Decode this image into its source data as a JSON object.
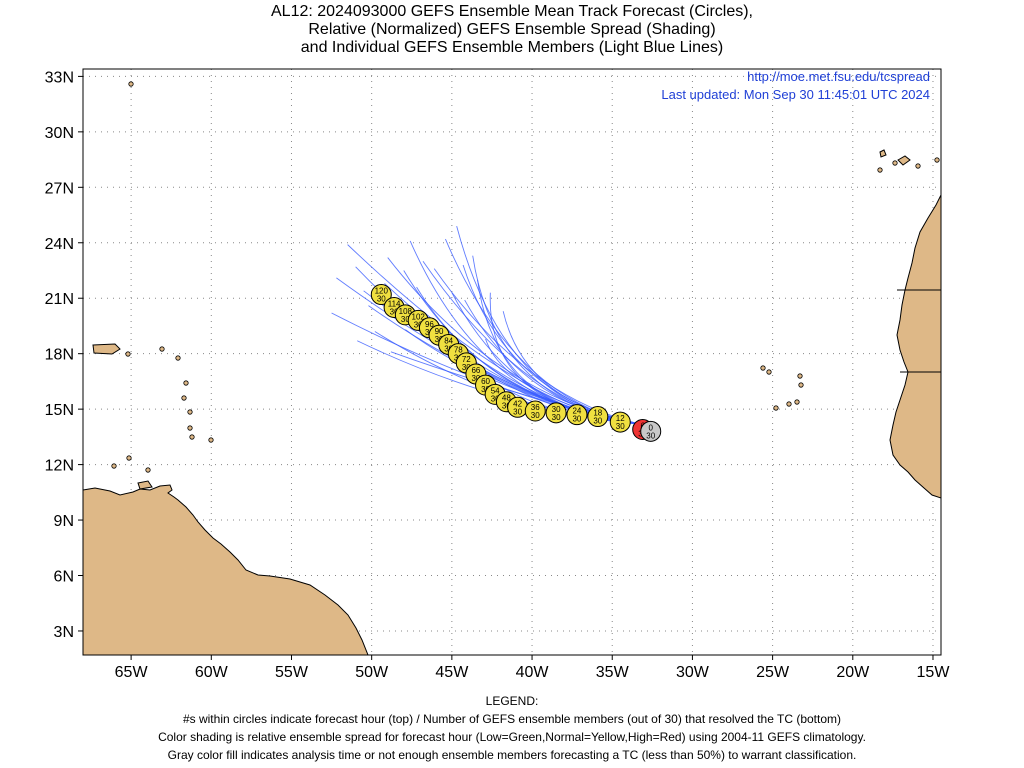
{
  "title": {
    "line1": "AL12: 2024093000 GEFS Ensemble Mean Track Forecast (Circles),",
    "line2": "Relative (Normalized) GEFS Ensemble Spread (Shading)",
    "line3": "and Individual GEFS Ensemble Members (Light Blue Lines)"
  },
  "credit": {
    "url": "http://moe.met.fsu.edu/tcspread",
    "updated": "Last updated: Mon Sep 30 11:45:01 UTC 2024"
  },
  "axes": {
    "lon_range": [
      -68,
      -14.5
    ],
    "lat_range": [
      1.7,
      33.4
    ],
    "x_ticks": [
      {
        "lon": -65,
        "label": "65W"
      },
      {
        "lon": -60,
        "label": "60W"
      },
      {
        "lon": -55,
        "label": "55W"
      },
      {
        "lon": -50,
        "label": "50W"
      },
      {
        "lon": -45,
        "label": "45W"
      },
      {
        "lon": -40,
        "label": "40W"
      },
      {
        "lon": -35,
        "label": "35W"
      },
      {
        "lon": -30,
        "label": "30W"
      },
      {
        "lon": -25,
        "label": "25W"
      },
      {
        "lon": -20,
        "label": "20W"
      },
      {
        "lon": -15,
        "label": "15W"
      }
    ],
    "y_ticks": [
      {
        "lat": 3,
        "label": "3N"
      },
      {
        "lat": 6,
        "label": "6N"
      },
      {
        "lat": 9,
        "label": "9N"
      },
      {
        "lat": 12,
        "label": "12N"
      },
      {
        "lat": 15,
        "label": "15N"
      },
      {
        "lat": 18,
        "label": "18N"
      },
      {
        "lat": 21,
        "label": "21N"
      },
      {
        "lat": 24,
        "label": "24N"
      },
      {
        "lat": 27,
        "label": "27N"
      },
      {
        "lat": 30,
        "label": "30N"
      },
      {
        "lat": 33,
        "label": "33N"
      }
    ]
  },
  "colors": {
    "land": "#deb887",
    "coast": "#000000",
    "member_line": "#3a5cff",
    "normal": "#f0e040",
    "high": "#ee3333",
    "gray": "#c8c8c8"
  },
  "mean_track": [
    {
      "hour": "0",
      "members": "30",
      "lon": -32.6,
      "lat": 13.8,
      "spread": "gray"
    },
    {
      "hour": "6",
      "members": "30",
      "lon": -33.1,
      "lat": 13.9,
      "spread": "high"
    },
    {
      "hour": "12",
      "members": "30",
      "lon": -34.5,
      "lat": 14.3,
      "spread": "normal"
    },
    {
      "hour": "18",
      "members": "30",
      "lon": -35.9,
      "lat": 14.6,
      "spread": "normal"
    },
    {
      "hour": "24",
      "members": "30",
      "lon": -37.2,
      "lat": 14.7,
      "spread": "normal"
    },
    {
      "hour": "30",
      "members": "30",
      "lon": -38.5,
      "lat": 14.8,
      "spread": "normal"
    },
    {
      "hour": "36",
      "members": "30",
      "lon": -39.8,
      "lat": 14.9,
      "spread": "normal"
    },
    {
      "hour": "42",
      "members": "30",
      "lon": -40.9,
      "lat": 15.1,
      "spread": "normal"
    },
    {
      "hour": "48",
      "members": "30",
      "lon": -41.6,
      "lat": 15.4,
      "spread": "normal"
    },
    {
      "hour": "54",
      "members": "30",
      "lon": -42.3,
      "lat": 15.8,
      "spread": "normal"
    },
    {
      "hour": "60",
      "members": "30",
      "lon": -42.9,
      "lat": 16.3,
      "spread": "normal"
    },
    {
      "hour": "66",
      "members": "30",
      "lon": -43.5,
      "lat": 16.9,
      "spread": "normal"
    },
    {
      "hour": "72",
      "members": "30",
      "lon": -44.1,
      "lat": 17.5,
      "spread": "normal"
    },
    {
      "hour": "78",
      "members": "30",
      "lon": -44.6,
      "lat": 18.0,
      "spread": "normal"
    },
    {
      "hour": "84",
      "members": "30",
      "lon": -45.2,
      "lat": 18.5,
      "spread": "normal"
    },
    {
      "hour": "90",
      "members": "30",
      "lon": -45.8,
      "lat": 19.0,
      "spread": "normal"
    },
    {
      "hour": "96",
      "members": "30",
      "lon": -46.4,
      "lat": 19.4,
      "spread": "normal"
    },
    {
      "hour": "102",
      "members": "30",
      "lon": -47.1,
      "lat": 19.8,
      "spread": "normal"
    },
    {
      "hour": "108",
      "members": "30",
      "lon": -47.9,
      "lat": 20.1,
      "spread": "normal"
    },
    {
      "hour": "114",
      "members": "30",
      "lon": -48.6,
      "lat": 20.5,
      "spread": "normal"
    },
    {
      "hour": "120",
      "members": "30",
      "lon": -49.4,
      "lat": 21.2,
      "spread": "normal"
    }
  ],
  "legend": {
    "heading": "LEGEND:",
    "line1": "#s within circles indicate forecast hour (top) / Number of GEFS ensemble members (out of 30) that resolved the TC (bottom)",
    "line2": "Color shading is relative ensemble spread for forecast hour (Low=Green,Normal=Yellow,High=Red) using 2004-11 GEFS climatology.",
    "line3": "Gray color fill indicates analysis time or not enough ensemble members forecasting a TC (less than 50%) to warrant classification."
  }
}
